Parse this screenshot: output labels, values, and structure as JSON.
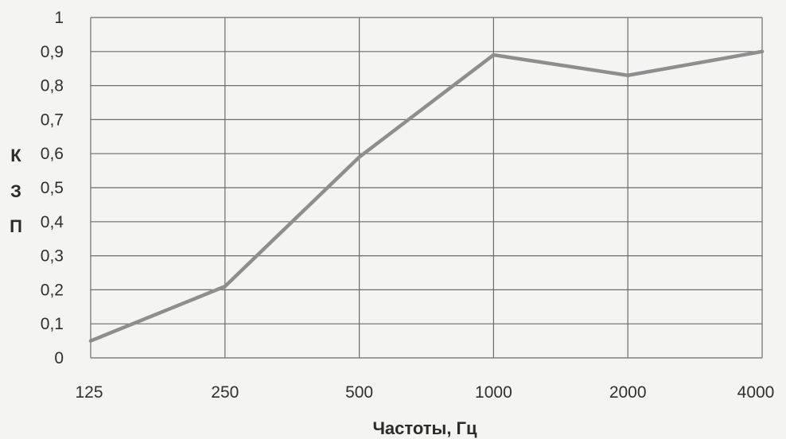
{
  "chart_data": {
    "type": "line",
    "categories": [
      "125",
      "250",
      "500",
      "1000",
      "2000",
      "4000"
    ],
    "series": [
      {
        "values": [
          0.05,
          0.21,
          0.59,
          0.89,
          0.83,
          0.9
        ]
      }
    ],
    "xlabel": "Частоты, Гц",
    "ylabel": [
      "К",
      "З",
      "П"
    ],
    "ylim": [
      0,
      1
    ],
    "yticks": [
      "0",
      "0,1",
      "0,2",
      "0,3",
      "0,4",
      "0,5",
      "0,6",
      "0,7",
      "0,8",
      "0,9",
      "1"
    ],
    "grid": true,
    "line_color": "#8e8e8e",
    "grid_color": "#6b6b6b"
  }
}
